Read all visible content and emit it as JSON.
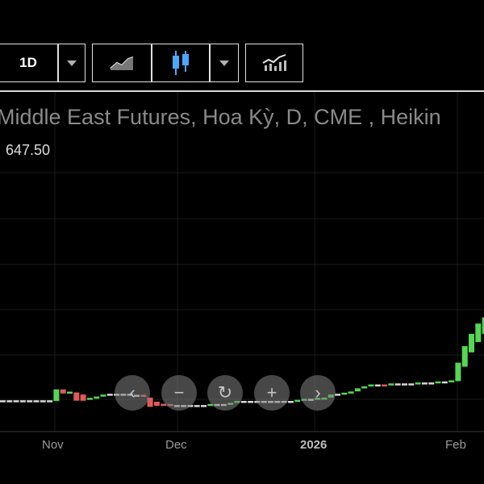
{
  "toolbar": {
    "interval_label": "1D",
    "interval_dropdown_icon": "caret-down-icon",
    "line_chart_icon": "line-chart-icon",
    "candle_icon": "candlestick-icon",
    "chart_type_dropdown_icon": "caret-down-icon",
    "indicators_icon": "indicators-icon"
  },
  "chart": {
    "title": "Middle East Futures, Hoa Kỳ, D, CME , Heikin",
    "last_price": "647.50",
    "x_labels": [
      "Nov",
      "Dec",
      "2026",
      "Feb"
    ],
    "navigation": [
      "chevron-left-icon",
      "zoom-out-icon",
      "reset-icon",
      "zoom-in-icon",
      "chevron-right-icon"
    ],
    "colors": {
      "up": "#55d655",
      "down": "#e05a5a",
      "flat": "#d8d8d8"
    }
  },
  "chart_data": {
    "type": "candlestick",
    "style": "heikin-ashi",
    "candles": [
      {
        "o": 0.3,
        "c": 0.3
      },
      {
        "o": 0.3,
        "c": 0.3
      },
      {
        "o": 0.3,
        "c": 0.3
      },
      {
        "o": 0.3,
        "c": 0.3
      },
      {
        "o": 0.3,
        "c": 0.3
      },
      {
        "o": 0.3,
        "c": 0.3
      },
      {
        "o": 0.3,
        "c": 0.3
      },
      {
        "o": 0.3,
        "c": 0.3
      },
      {
        "o": 0.3,
        "c": 6.0
      },
      {
        "o": 6.0,
        "c": 4.0
      },
      {
        "o": 4.0,
        "c": 4.5
      },
      {
        "o": 4.5,
        "c": 0.5
      },
      {
        "o": 3.5,
        "c": 0.5
      },
      {
        "o": 1.0,
        "c": 1.5
      },
      {
        "o": 1.5,
        "c": 2.5
      },
      {
        "o": 2.5,
        "c": 3.5
      },
      {
        "o": 3.5,
        "c": 3.5
      },
      {
        "o": 3.5,
        "c": 3.5
      },
      {
        "o": 3.5,
        "c": 3.5
      },
      {
        "o": 3.5,
        "c": 3.5
      },
      {
        "o": 3.0,
        "c": 3.0
      },
      {
        "o": 3.0,
        "c": 2.5
      },
      {
        "o": 2.0,
        "c": -2.5
      },
      {
        "o": 0.0,
        "c": -2.0
      },
      {
        "o": -1.0,
        "c": -2.0
      },
      {
        "o": -1.5,
        "c": -2.0
      },
      {
        "o": -2.0,
        "c": -2.0
      },
      {
        "o": -2.0,
        "c": -2.0
      },
      {
        "o": -2.0,
        "c": -2.0
      },
      {
        "o": -2.0,
        "c": -2.0
      },
      {
        "o": -2.0,
        "c": -2.0
      },
      {
        "o": -2.0,
        "c": -1.5
      },
      {
        "o": -1.5,
        "c": -1.5
      },
      {
        "o": -1.5,
        "c": -1.5
      },
      {
        "o": -1.5,
        "c": -0.5
      },
      {
        "o": -0.5,
        "c": 0.0
      },
      {
        "o": 0.0,
        "c": 0.0
      },
      {
        "o": 0.0,
        "c": 0.0
      },
      {
        "o": 0.0,
        "c": 0.0
      },
      {
        "o": 0.0,
        "c": 0.0
      },
      {
        "o": 0.0,
        "c": 0.0
      },
      {
        "o": 0.0,
        "c": 0.0
      },
      {
        "o": 0.0,
        "c": 0.0
      },
      {
        "o": 0.0,
        "c": 0.0
      },
      {
        "o": 0.0,
        "c": 0.5
      },
      {
        "o": 0.5,
        "c": 1.0
      },
      {
        "o": 1.0,
        "c": 1.0
      },
      {
        "o": 1.0,
        "c": 1.5
      },
      {
        "o": 1.0,
        "c": 2.0
      },
      {
        "o": 2.0,
        "c": 3.5
      },
      {
        "o": 3.5,
        "c": 3.5
      },
      {
        "o": 3.5,
        "c": 4.0
      },
      {
        "o": 4.0,
        "c": 5.0
      },
      {
        "o": 5.0,
        "c": 6.5
      },
      {
        "o": 6.5,
        "c": 7.5
      },
      {
        "o": 7.5,
        "c": 8.0
      },
      {
        "o": 8.0,
        "c": 8.0
      },
      {
        "o": 8.0,
        "c": 7.5
      },
      {
        "o": 8.0,
        "c": 8.5
      },
      {
        "o": 8.5,
        "c": 8.5
      },
      {
        "o": 8.5,
        "c": 8.5
      },
      {
        "o": 8.5,
        "c": 8.5
      },
      {
        "o": 8.5,
        "c": 9.0
      },
      {
        "o": 9.0,
        "c": 9.0
      },
      {
        "o": 9.0,
        "c": 9.0
      },
      {
        "o": 9.0,
        "c": 9.5
      },
      {
        "o": 9.5,
        "c": 9.5
      },
      {
        "o": 9.5,
        "c": 10.0
      },
      {
        "o": 10.0,
        "c": 19.0
      },
      {
        "o": 17.0,
        "c": 27.0
      },
      {
        "o": 24.0,
        "c": 33.0
      },
      {
        "o": 29.0,
        "c": 38.0
      },
      {
        "o": 33.0,
        "c": 41.0
      },
      {
        "o": 36.0,
        "c": 42.0
      }
    ]
  }
}
